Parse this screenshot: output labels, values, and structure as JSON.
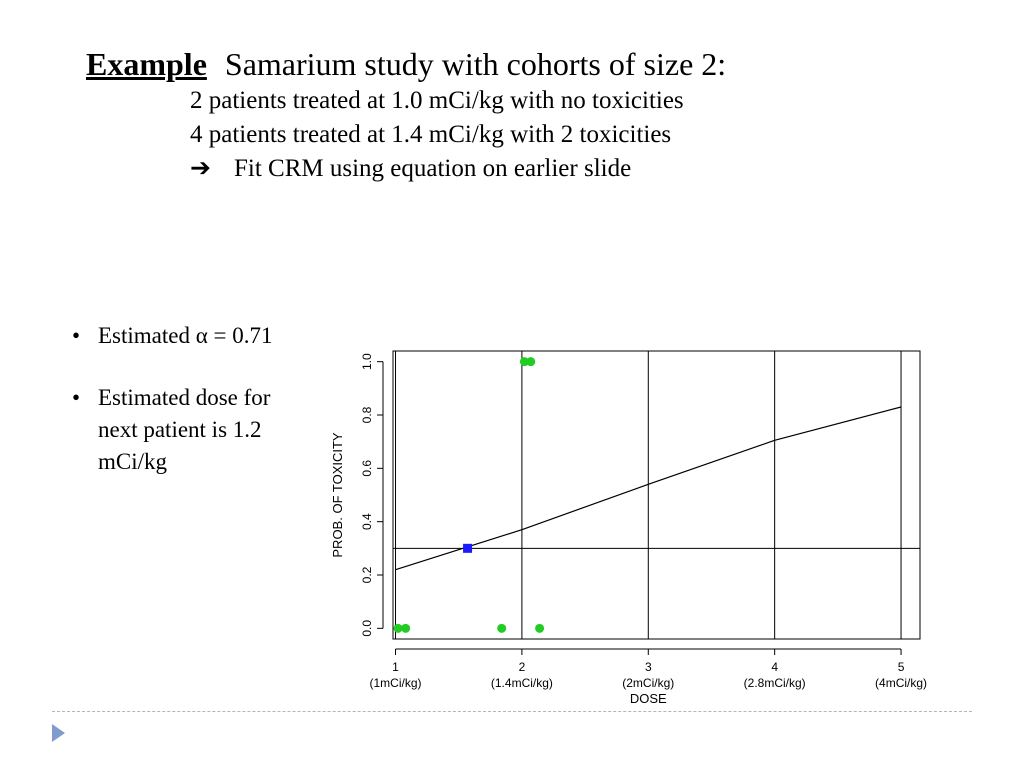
{
  "slide": {
    "title_lead": "Example",
    "title_rest": "Samarium study with cohorts of size 2:",
    "lines": [
      "2 patients treated at 1.0 mCi/kg with no toxicities",
      "4 patients treated at 1.4 mCi/kg with 2 toxicities"
    ],
    "arrow_symbol": "➔",
    "arrow_text": "Fit CRM using equation on earlier slide",
    "bullet_symbol": "•",
    "bullets": [
      "Estimated α = 0.71",
      "Estimated dose for next patient is 1.2 mCi/kg"
    ]
  },
  "chart_data": {
    "type": "line",
    "xlabel": "DOSE",
    "ylabel": "PROB. OF TOXICITY",
    "xlim": [
      0.98,
      5.15
    ],
    "ylim": [
      -0.04,
      1.04
    ],
    "x_ticks": [
      {
        "value": 1,
        "label": "1",
        "sublabel": "(1mCi/kg)"
      },
      {
        "value": 2,
        "label": "2",
        "sublabel": "(1.4mCi/kg)"
      },
      {
        "value": 3,
        "label": "3",
        "sublabel": "(2mCi/kg)"
      },
      {
        "value": 4,
        "label": "4",
        "sublabel": "(2.8mCi/kg)"
      },
      {
        "value": 5,
        "label": "5",
        "sublabel": "(4mCi/kg)"
      }
    ],
    "y_ticks": [
      {
        "value": 0.0,
        "label": "0.0"
      },
      {
        "value": 0.2,
        "label": "0.2"
      },
      {
        "value": 0.4,
        "label": "0.4"
      },
      {
        "value": 0.6,
        "label": "0.6"
      },
      {
        "value": 0.8,
        "label": "0.8"
      },
      {
        "value": 1.0,
        "label": "1.0"
      }
    ],
    "vertical_lines": [
      1,
      2,
      3,
      4,
      5
    ],
    "target_line": 0.3,
    "curve": {
      "x": [
        1,
        2,
        3,
        4,
        5
      ],
      "y": [
        0.22,
        0.37,
        0.54,
        0.705,
        0.83
      ],
      "color": "#000000"
    },
    "observations": {
      "color": "#22cc22",
      "points": [
        {
          "x": 1.02,
          "y": 0
        },
        {
          "x": 1.08,
          "y": 0
        },
        {
          "x": 1.84,
          "y": 0
        },
        {
          "x": 2.02,
          "y": 1
        },
        {
          "x": 2.07,
          "y": 1
        },
        {
          "x": 2.14,
          "y": 0
        }
      ]
    },
    "estimate": {
      "x": 1.57,
      "y": 0.3,
      "color": "#1a1aff"
    }
  }
}
